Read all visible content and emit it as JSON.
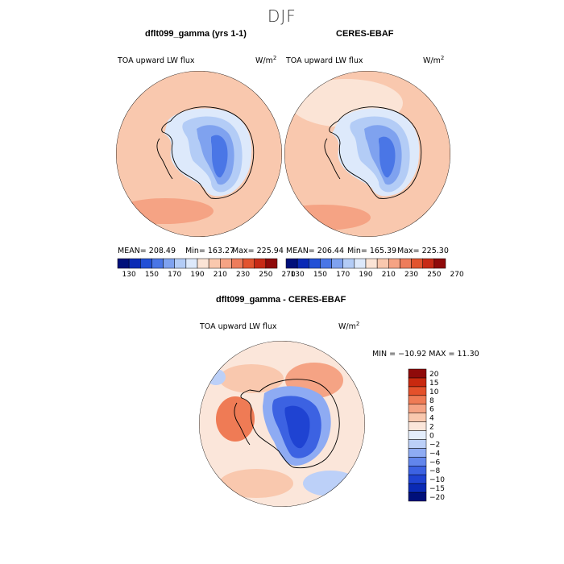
{
  "season": "DJF",
  "panels": [
    {
      "title": "dflt099_gamma (yrs 1-1)",
      "variable": "TOA upward LW flux",
      "units": "W/m",
      "units_sup": "2",
      "mean_label": "MEAN= 208.49",
      "min_label": "Min= 163.27",
      "max_label": "Max= 225.94"
    },
    {
      "title": "CERES-EBAF",
      "variable": "TOA upward LW flux",
      "units": "W/m",
      "units_sup": "2",
      "mean_label": "MEAN= 206.44",
      "min_label": "Min= 165.39",
      "max_label": "Max= 225.30"
    }
  ],
  "diff": {
    "title": "dflt099_gamma - CERES-EBAF",
    "variable": "TOA upward LW flux",
    "units": "W/m",
    "units_sup": "2",
    "minmax_label": "MIN = −10.92 MAX =  11.30"
  },
  "colors": {
    "field_levels": [
      "#00107a",
      "#0a2ab5",
      "#2250d6",
      "#4a76e6",
      "#7fa2ef",
      "#b3ccf6",
      "#dde9fb",
      "#fbe4d6",
      "#f9c8ae",
      "#f5a384",
      "#ee7c5b",
      "#e2542f",
      "#c72a16",
      "#8f0a0a"
    ],
    "diff_levels": [
      "#00107a",
      "#0a2ab5",
      "#1f43d2",
      "#3c62e2",
      "#6286ec",
      "#8eabf3",
      "#bcd0f8",
      "#e4eefc",
      "#fbe6da",
      "#f9c8ae",
      "#f5a384",
      "#ef7b55",
      "#e4512b",
      "#c9290f",
      "#8f0a0a"
    ],
    "coast": "#000000"
  },
  "chart_data": [
    {
      "type": "polar-contour-map",
      "title": "dflt099_gamma (yrs 1-1)",
      "variable": "TOA upward LW flux",
      "units": "W/m2",
      "mean": 208.49,
      "min": 163.27,
      "max": 225.94,
      "colorbar_ticks": [
        130,
        150,
        170,
        190,
        210,
        230,
        250,
        270
      ],
      "colorbar_labels": [
        "130",
        "150",
        "170",
        "190",
        "210",
        "230",
        "250",
        "270"
      ]
    },
    {
      "type": "polar-contour-map",
      "title": "CERES-EBAF",
      "variable": "TOA upward LW flux",
      "units": "W/m2",
      "mean": 206.44,
      "min": 165.39,
      "max": 225.3,
      "colorbar_ticks": [
        130,
        150,
        170,
        190,
        210,
        230,
        250,
        270
      ],
      "colorbar_labels": [
        "130",
        "150",
        "170",
        "190",
        "210",
        "230",
        "250",
        "270"
      ]
    },
    {
      "type": "polar-contour-map",
      "title": "dflt099_gamma - CERES-EBAF",
      "variable": "TOA upward LW flux",
      "units": "W/m2",
      "min": -10.92,
      "max": 11.3,
      "colorbar_levels": [
        -20,
        -15,
        -10,
        -8,
        -6,
        -4,
        -2,
        0,
        2,
        4,
        6,
        8,
        10,
        15,
        20
      ],
      "colorbar_labels": [
        "20",
        "15",
        "10",
        "8",
        "6",
        "4",
        "2",
        "0",
        "−2",
        "−4",
        "−6",
        "−8",
        "−10",
        "−15",
        "−20"
      ]
    }
  ]
}
